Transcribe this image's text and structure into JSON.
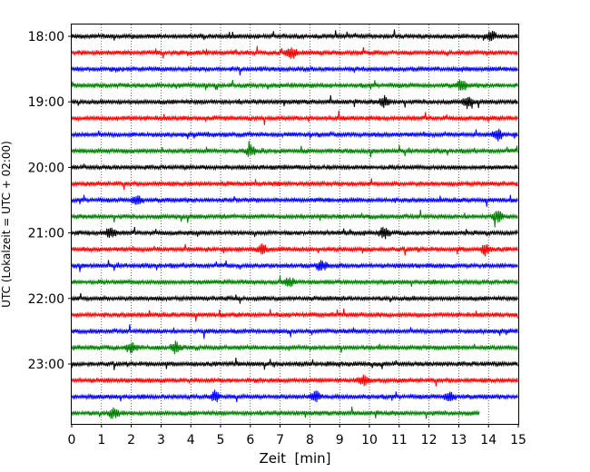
{
  "chart_data": {
    "type": "line",
    "title": "",
    "xlabel": "Zeit  [min]",
    "ylabel": "UTC (Lokalzeit = UTC + 02:00)",
    "xlim": [
      0,
      15
    ],
    "x_ticks": [
      0,
      1,
      2,
      3,
      4,
      5,
      6,
      7,
      8,
      9,
      10,
      11,
      12,
      13,
      14,
      15
    ],
    "y_tick_labels": [
      "18:00",
      "19:00",
      "20:00",
      "21:00",
      "22:00",
      "23:00"
    ],
    "grid": "vertical dotted lines at each minute",
    "colors": [
      "#000000",
      "#ff0000",
      "#0000ff",
      "#008000"
    ],
    "trace_interval_minutes": 15,
    "traces": [
      {
        "start": "18:00",
        "color": "#000000",
        "end_min": 15
      },
      {
        "start": "18:15",
        "color": "#ff0000",
        "end_min": 15
      },
      {
        "start": "18:30",
        "color": "#0000ff",
        "end_min": 15
      },
      {
        "start": "18:45",
        "color": "#008000",
        "end_min": 15
      },
      {
        "start": "19:00",
        "color": "#000000",
        "end_min": 15
      },
      {
        "start": "19:15",
        "color": "#ff0000",
        "end_min": 15
      },
      {
        "start": "19:30",
        "color": "#0000ff",
        "end_min": 15
      },
      {
        "start": "19:45",
        "color": "#008000",
        "end_min": 15
      },
      {
        "start": "20:00",
        "color": "#000000",
        "end_min": 15
      },
      {
        "start": "20:15",
        "color": "#ff0000",
        "end_min": 15
      },
      {
        "start": "20:30",
        "color": "#0000ff",
        "end_min": 15
      },
      {
        "start": "20:45",
        "color": "#008000",
        "end_min": 15
      },
      {
        "start": "21:00",
        "color": "#000000",
        "end_min": 15
      },
      {
        "start": "21:15",
        "color": "#ff0000",
        "end_min": 15
      },
      {
        "start": "21:30",
        "color": "#0000ff",
        "end_min": 15
      },
      {
        "start": "21:45",
        "color": "#008000",
        "end_min": 15
      },
      {
        "start": "22:00",
        "color": "#000000",
        "end_min": 15
      },
      {
        "start": "22:15",
        "color": "#ff0000",
        "end_min": 15
      },
      {
        "start": "22:30",
        "color": "#0000ff",
        "end_min": 15
      },
      {
        "start": "22:45",
        "color": "#008000",
        "end_min": 15
      },
      {
        "start": "23:00",
        "color": "#000000",
        "end_min": 15
      },
      {
        "start": "23:15",
        "color": "#ff0000",
        "end_min": 15
      },
      {
        "start": "23:30",
        "color": "#0000ff",
        "end_min": 15
      },
      {
        "start": "23:45",
        "color": "#008000",
        "end_min": 13.7
      }
    ],
    "events": [
      {
        "trace": "18:00",
        "min": 14.1
      },
      {
        "trace": "18:15",
        "min": 7.4
      },
      {
        "trace": "18:45",
        "min": 13.1
      },
      {
        "trace": "19:00",
        "min": 10.5
      },
      {
        "trace": "19:00",
        "min": 13.3
      },
      {
        "trace": "19:30",
        "min": 14.3
      },
      {
        "trace": "19:45",
        "min": 6.0
      },
      {
        "trace": "20:30",
        "min": 2.2
      },
      {
        "trace": "20:45",
        "min": 14.3
      },
      {
        "trace": "21:00",
        "min": 1.3
      },
      {
        "trace": "21:00",
        "min": 10.5
      },
      {
        "trace": "21:15",
        "min": 6.4
      },
      {
        "trace": "21:15",
        "min": 13.9
      },
      {
        "trace": "21:30",
        "min": 8.4
      },
      {
        "trace": "21:45",
        "min": 7.3
      },
      {
        "trace": "22:45",
        "min": 2.0
      },
      {
        "trace": "22:45",
        "min": 3.5
      },
      {
        "trace": "23:15",
        "min": 9.8
      },
      {
        "trace": "23:30",
        "min": 4.8
      },
      {
        "trace": "23:30",
        "min": 8.2
      },
      {
        "trace": "23:30",
        "min": 12.7
      },
      {
        "trace": "23:45",
        "min": 1.4
      }
    ]
  }
}
